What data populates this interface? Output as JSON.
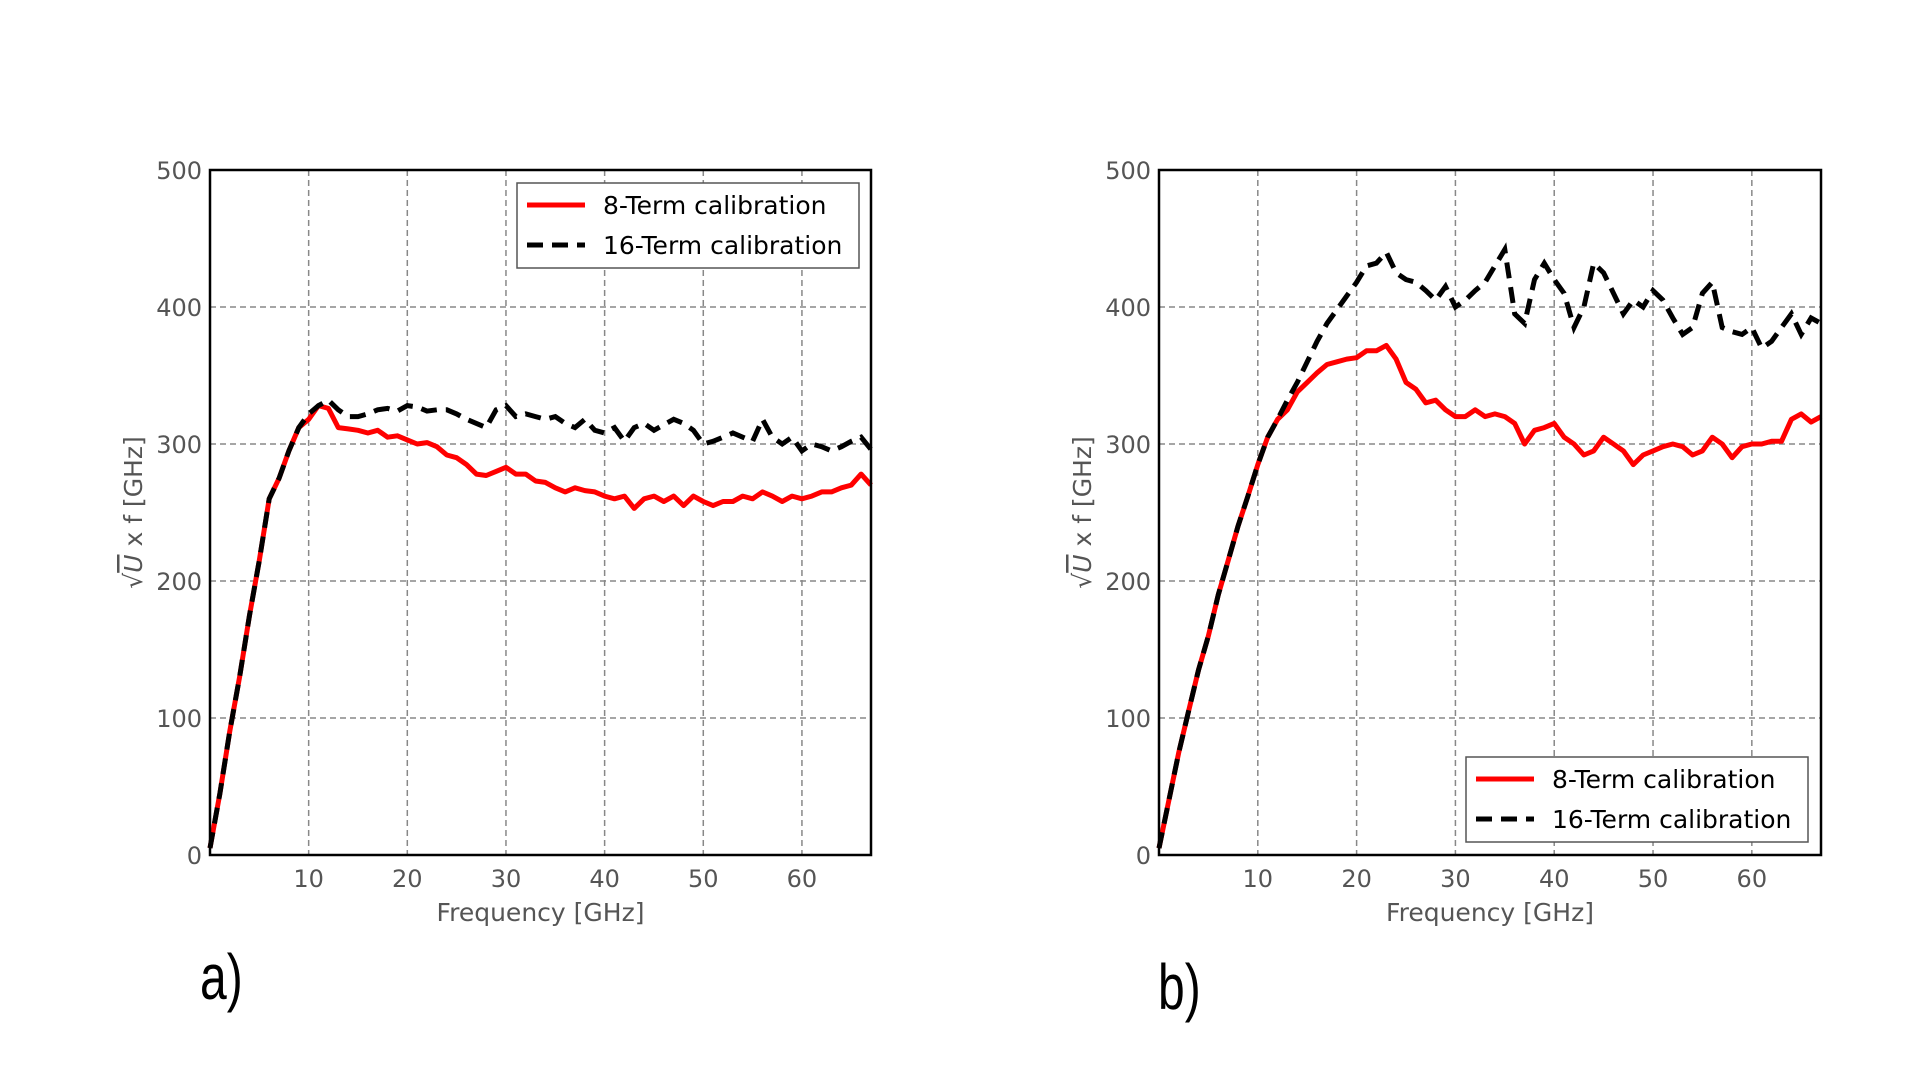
{
  "chart_data": [
    {
      "type": "line",
      "panel_label": "a)",
      "title": "",
      "xlabel": "Frequency [GHz]",
      "ylabel_root": "U",
      "ylabel_rest": "x f [GHz]",
      "xlim": [
        0,
        67
      ],
      "ylim": [
        0,
        500
      ],
      "xticks": [
        10,
        20,
        30,
        40,
        50,
        60
      ],
      "yticks": [
        0,
        100,
        200,
        300,
        400,
        500
      ],
      "grid": true,
      "legend_position": "top-right",
      "series": [
        {
          "name": "8-Term calibration",
          "color": "#ff0000",
          "style": "solid",
          "x": [
            0,
            1,
            2,
            3,
            4,
            5,
            6,
            7,
            8,
            9,
            10,
            11,
            12,
            13,
            14,
            15,
            16,
            17,
            18,
            19,
            20,
            21,
            22,
            23,
            24,
            25,
            26,
            27,
            28,
            29,
            30,
            31,
            32,
            33,
            34,
            35,
            36,
            37,
            38,
            39,
            40,
            41,
            42,
            43,
            44,
            45,
            46,
            47,
            48,
            49,
            50,
            51,
            52,
            53,
            54,
            55,
            56,
            57,
            58,
            59,
            60,
            61,
            62,
            63,
            64,
            65,
            66,
            67
          ],
          "y": [
            5,
            45,
            90,
            130,
            175,
            215,
            260,
            275,
            295,
            312,
            318,
            328,
            326,
            312,
            311,
            310,
            308,
            310,
            305,
            306,
            303,
            300,
            301,
            298,
            292,
            290,
            285,
            278,
            277,
            280,
            283,
            278,
            278,
            273,
            272,
            268,
            265,
            268,
            266,
            265,
            262,
            260,
            262,
            253,
            260,
            262,
            258,
            262,
            255,
            262,
            258,
            255,
            258,
            258,
            262,
            260,
            265,
            262,
            258,
            262,
            260,
            262,
            265,
            265,
            268,
            270,
            278,
            270
          ]
        },
        {
          "name": "16-Term calibration",
          "color": "#000000",
          "style": "dashed",
          "x": [
            0,
            1,
            2,
            3,
            4,
            5,
            6,
            7,
            8,
            9,
            10,
            11,
            12,
            13,
            14,
            15,
            16,
            17,
            18,
            19,
            20,
            21,
            22,
            23,
            24,
            25,
            26,
            27,
            28,
            29,
            30,
            31,
            32,
            33,
            34,
            35,
            36,
            37,
            38,
            39,
            40,
            41,
            42,
            43,
            44,
            45,
            46,
            47,
            48,
            49,
            50,
            51,
            52,
            53,
            54,
            55,
            56,
            57,
            58,
            59,
            60,
            61,
            62,
            63,
            64,
            65,
            66,
            67
          ],
          "y": [
            5,
            45,
            90,
            130,
            175,
            215,
            260,
            275,
            295,
            312,
            322,
            328,
            332,
            325,
            320,
            320,
            322,
            325,
            326,
            324,
            328,
            327,
            324,
            325,
            325,
            322,
            318,
            315,
            312,
            325,
            328,
            320,
            322,
            320,
            318,
            320,
            315,
            312,
            318,
            310,
            308,
            312,
            302,
            312,
            315,
            310,
            314,
            318,
            315,
            310,
            300,
            302,
            305,
            308,
            305,
            302,
            318,
            305,
            300,
            305,
            295,
            300,
            298,
            295,
            298,
            302,
            305,
            296
          ]
        }
      ]
    },
    {
      "type": "line",
      "panel_label": "b)",
      "title": "",
      "xlabel": "Frequency [GHz]",
      "ylabel_root": "U",
      "ylabel_rest": "x f [GHz]",
      "xlim": [
        0,
        67
      ],
      "ylim": [
        0,
        500
      ],
      "xticks": [
        10,
        20,
        30,
        40,
        50,
        60
      ],
      "yticks": [
        0,
        100,
        200,
        300,
        400,
        500
      ],
      "grid": true,
      "legend_position": "lower-right",
      "series": [
        {
          "name": "8-Term calibration",
          "color": "#ff0000",
          "style": "solid",
          "x": [
            0,
            1,
            2,
            3,
            4,
            5,
            6,
            7,
            8,
            9,
            10,
            11,
            12,
            13,
            14,
            15,
            16,
            17,
            18,
            19,
            20,
            21,
            22,
            23,
            24,
            25,
            26,
            27,
            28,
            29,
            30,
            31,
            32,
            33,
            34,
            35,
            36,
            37,
            38,
            39,
            40,
            41,
            42,
            43,
            44,
            45,
            46,
            47,
            48,
            49,
            50,
            51,
            52,
            53,
            54,
            55,
            56,
            57,
            58,
            59,
            60,
            61,
            62,
            63,
            64,
            65,
            66,
            67
          ],
          "y": [
            5,
            40,
            75,
            105,
            135,
            160,
            190,
            215,
            240,
            262,
            285,
            305,
            318,
            325,
            338,
            345,
            352,
            358,
            360,
            362,
            363,
            368,
            368,
            372,
            362,
            345,
            340,
            330,
            332,
            325,
            320,
            320,
            325,
            320,
            322,
            320,
            315,
            300,
            310,
            312,
            315,
            305,
            300,
            292,
            295,
            305,
            300,
            295,
            285,
            292,
            295,
            298,
            300,
            298,
            292,
            295,
            305,
            300,
            290,
            298,
            300,
            300,
            302,
            302,
            318,
            322,
            316,
            320
          ]
        },
        {
          "name": "16-Term calibration",
          "color": "#000000",
          "style": "dashed",
          "x": [
            0,
            1,
            2,
            3,
            4,
            5,
            6,
            7,
            8,
            9,
            10,
            11,
            12,
            13,
            14,
            15,
            16,
            17,
            18,
            19,
            20,
            21,
            22,
            23,
            24,
            25,
            26,
            27,
            28,
            29,
            30,
            31,
            32,
            33,
            34,
            35,
            36,
            37,
            38,
            39,
            40,
            41,
            42,
            43,
            44,
            45,
            46,
            47,
            48,
            49,
            50,
            51,
            52,
            53,
            54,
            55,
            56,
            57,
            58,
            59,
            60,
            61,
            62,
            63,
            64,
            65,
            66,
            67
          ],
          "y": [
            5,
            40,
            75,
            105,
            135,
            160,
            190,
            215,
            240,
            262,
            285,
            305,
            318,
            332,
            345,
            360,
            375,
            388,
            398,
            408,
            418,
            430,
            432,
            440,
            425,
            420,
            418,
            412,
            405,
            415,
            400,
            405,
            412,
            418,
            430,
            442,
            395,
            388,
            420,
            432,
            420,
            410,
            385,
            400,
            432,
            425,
            410,
            395,
            405,
            400,
            412,
            405,
            392,
            380,
            385,
            410,
            418,
            385,
            382,
            380,
            385,
            370,
            375,
            385,
            395,
            380,
            392,
            388
          ]
        }
      ]
    }
  ]
}
